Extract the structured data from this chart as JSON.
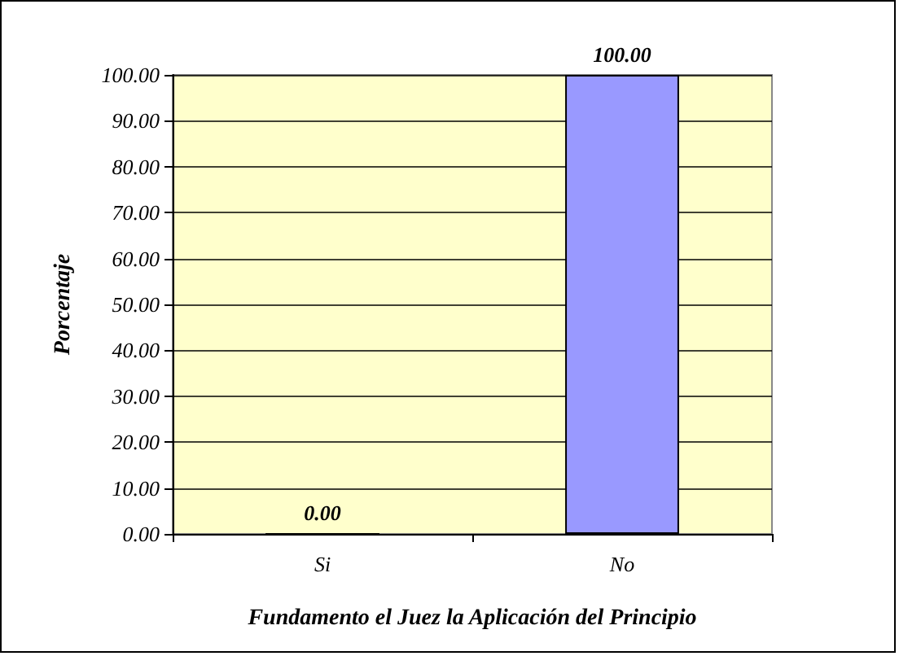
{
  "chart_data": {
    "type": "bar",
    "xlabel": "Fundamento el Juez la Aplicación del Principio",
    "ylabel": "Porcentaje",
    "categories": [
      "Si",
      "No"
    ],
    "values": [
      0,
      100
    ],
    "colors": [
      "#cc0000",
      "#9999ff"
    ],
    "value_labels": [
      "0.00",
      "100.00"
    ],
    "ylim": [
      0,
      100
    ],
    "yticks": [
      {
        "value": 0,
        "label": "0.00"
      },
      {
        "value": 10,
        "label": "10.00"
      },
      {
        "value": 20,
        "label": "20.00"
      },
      {
        "value": 30,
        "label": "30.00"
      },
      {
        "value": 40,
        "label": "40.00"
      },
      {
        "value": 50,
        "label": "50.00"
      },
      {
        "value": 60,
        "label": "60.00"
      },
      {
        "value": 70,
        "label": "70.00"
      },
      {
        "value": 80,
        "label": "80.00"
      },
      {
        "value": 90,
        "label": "90.00"
      },
      {
        "value": 100,
        "label": "100.00"
      }
    ],
    "grid": "y"
  }
}
